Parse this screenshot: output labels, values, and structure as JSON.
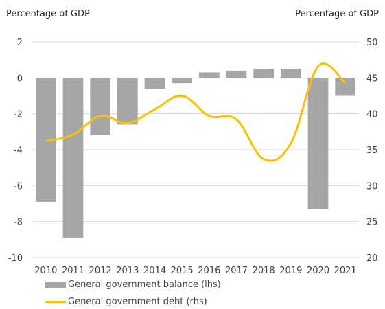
{
  "chart_data": {
    "type": "bar",
    "left_axis_title": "Percentage of GDP",
    "right_axis_title": "Percentage of GDP",
    "categories": [
      "2010",
      "2011",
      "2012",
      "2013",
      "2014",
      "2015",
      "2016",
      "2017",
      "2018",
      "2019",
      "2020",
      "2021"
    ],
    "left_ylim": [
      -10,
      2
    ],
    "left_ticks": [
      "2",
      "0",
      "-2",
      "-4",
      "-6",
      "-8",
      "-10"
    ],
    "right_ylim": [
      20,
      50
    ],
    "right_ticks": [
      "50",
      "45",
      "40",
      "35",
      "30",
      "25",
      "20"
    ],
    "grid": true,
    "legend_position": "bottom-left",
    "series": [
      {
        "name": "General government balance (lhs)",
        "type": "bar",
        "axis": "left",
        "color": "#a6a6a6",
        "values": [
          -6.9,
          -8.9,
          -3.2,
          -2.6,
          -0.6,
          -0.3,
          0.3,
          0.4,
          0.5,
          0.5,
          -7.3,
          -1.0
        ]
      },
      {
        "name": "General government debt (rhs)",
        "type": "line",
        "axis": "right",
        "color": "#ffc000",
        "values": [
          36.2,
          37.1,
          39.7,
          38.7,
          40.6,
          42.5,
          39.7,
          39.2,
          33.7,
          35.9,
          46.6,
          44.3
        ]
      }
    ]
  }
}
